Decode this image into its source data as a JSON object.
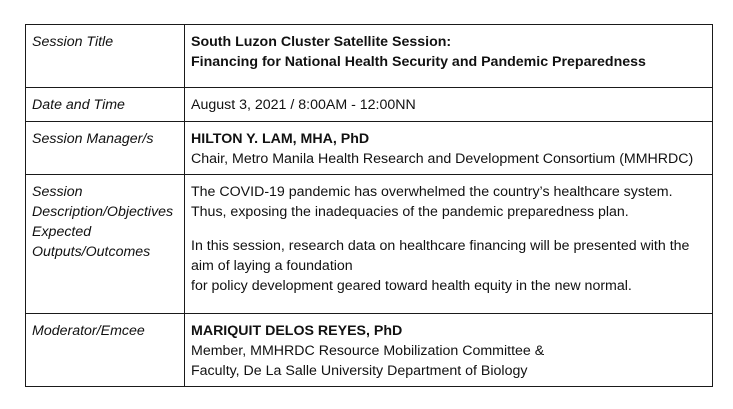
{
  "rows": {
    "title": {
      "label": "Session Title",
      "lines": [
        "South Luzon Cluster Satellite Session:",
        "Financing for National Health Security and Pandemic Preparedness"
      ]
    },
    "date": {
      "label": "Date and Time",
      "value": "August 3, 2021 / 8:00AM - 12:00NN"
    },
    "manager": {
      "label": "Session Manager/s",
      "name": "HILTON Y. LAM, MHA, PhD",
      "role": "Chair, Metro Manila Health Research and Development Consortium (MMHRDC)"
    },
    "description": {
      "label_lines": [
        "Session",
        "Description/Objectives",
        "Expected",
        "Outputs/Outcomes"
      ],
      "para1_lines": [
        "The COVID-19 pandemic has overwhelmed the country’s healthcare system.",
        "Thus, exposing the inadequacies of the pandemic preparedness plan."
      ],
      "para2_lines": [
        "In this session, research data on healthcare financing will be presented with the",
        "aim of laying a foundation",
        "for policy development geared toward health equity in the new normal."
      ]
    },
    "moderator": {
      "label": "Moderator/Emcee",
      "name": "MARIQUIT DELOS REYES, PhD",
      "role_lines": [
        "Member, MMHRDC Resource Mobilization Committee &",
        "Faculty, De La Salle University Department of Biology"
      ]
    }
  }
}
